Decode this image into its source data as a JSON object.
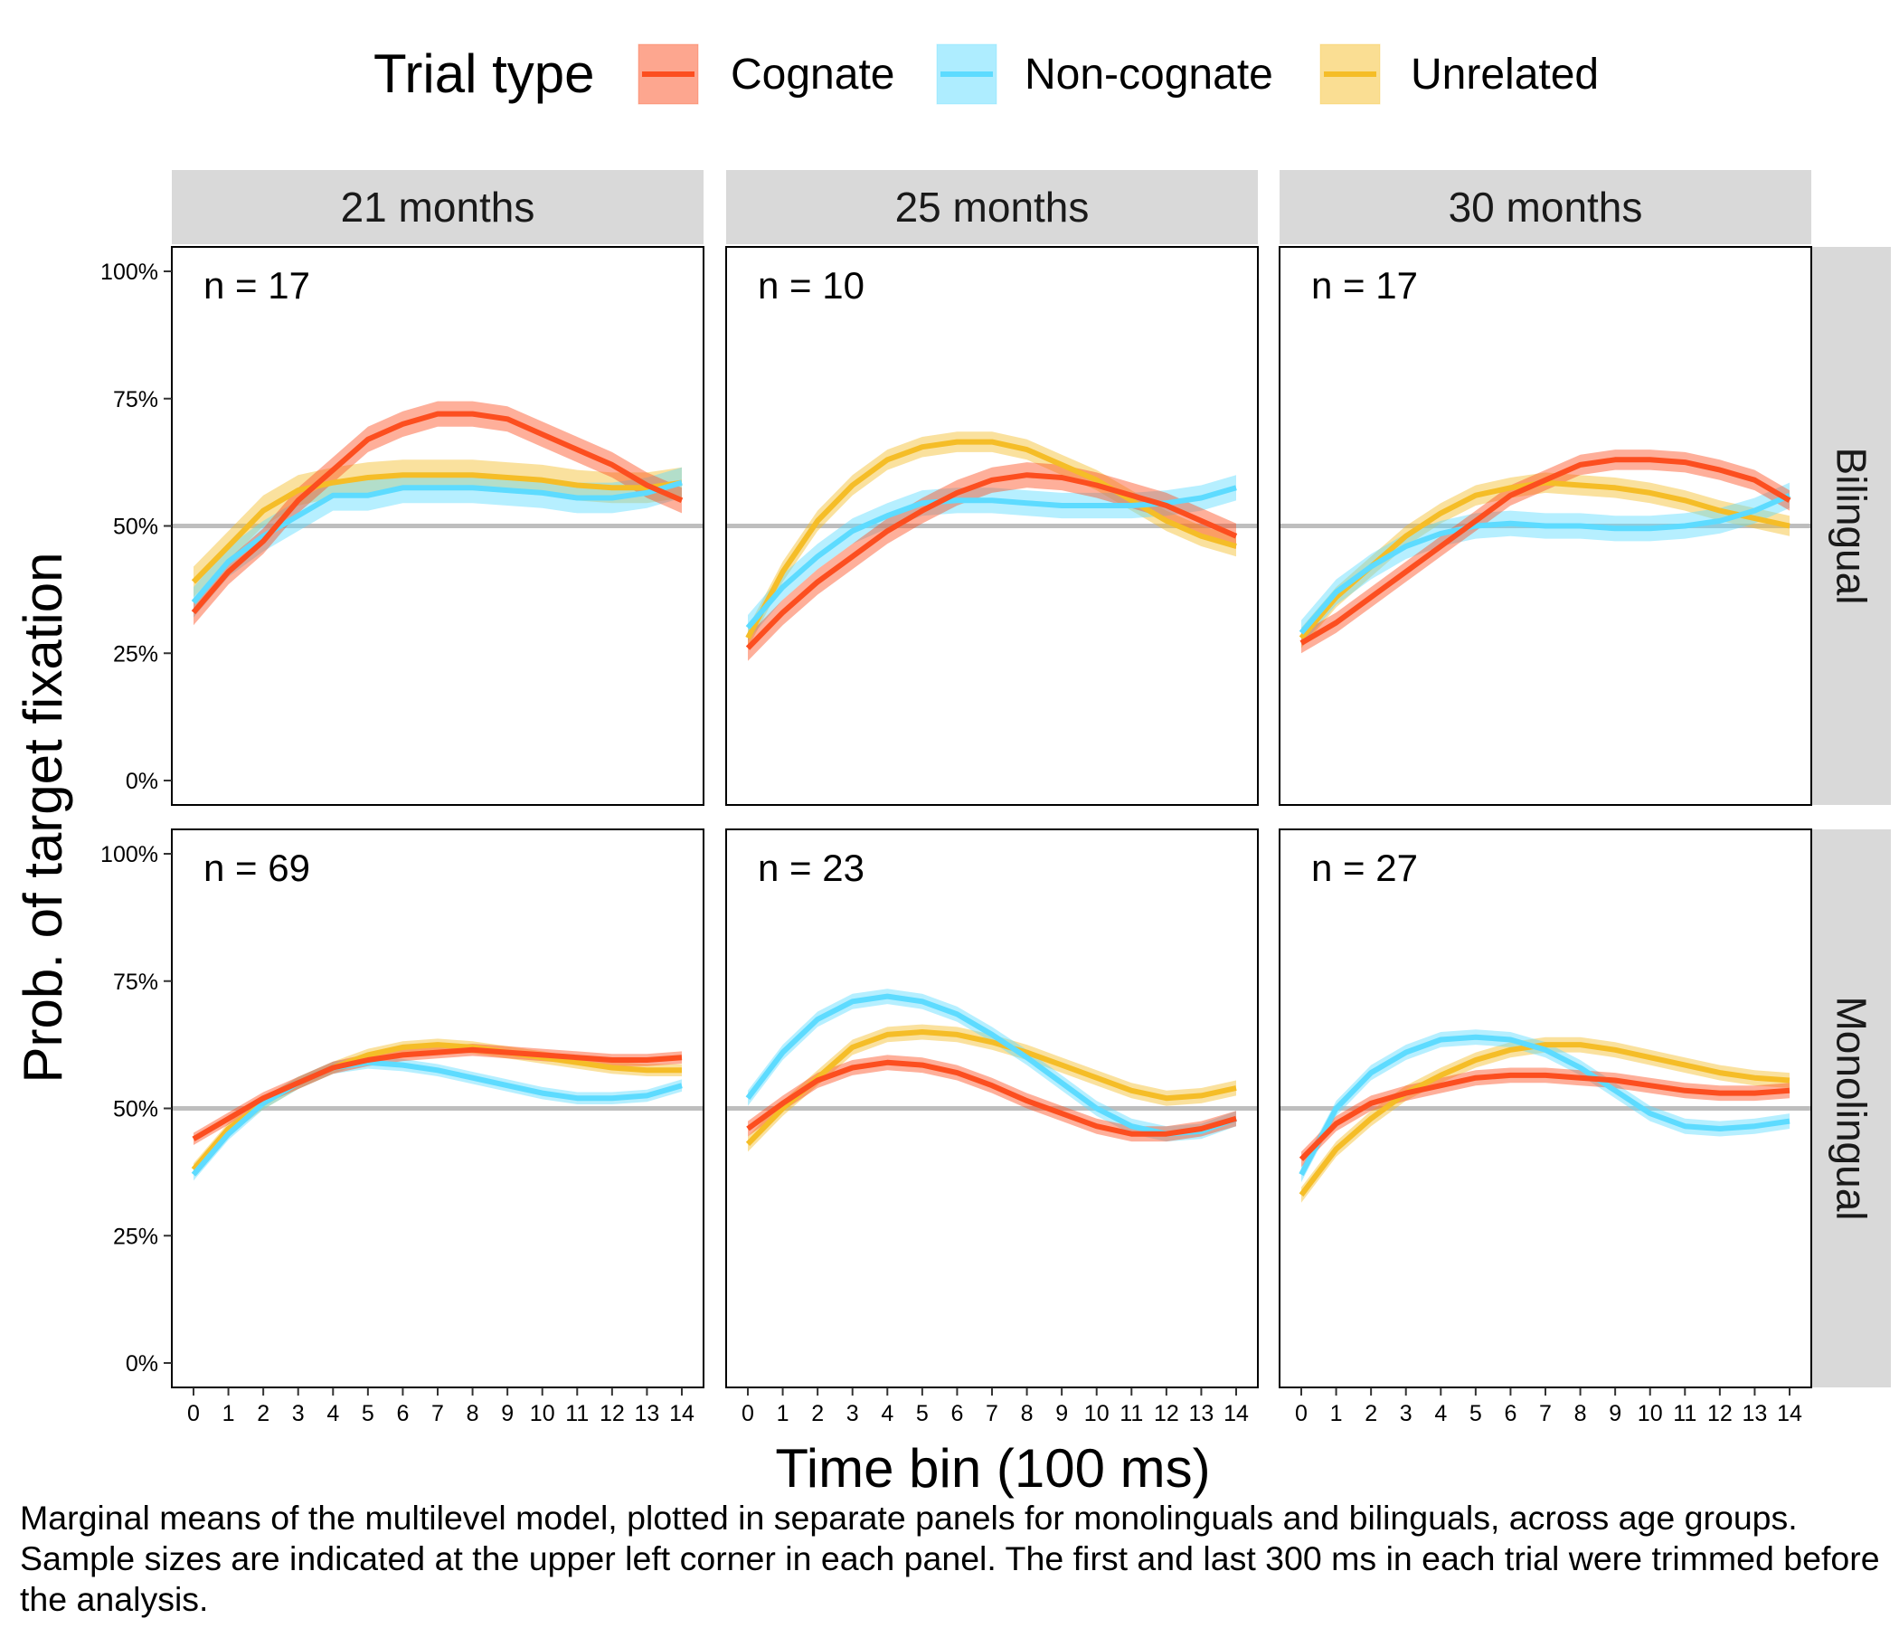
{
  "chart_data": {
    "type": "line",
    "legend": {
      "title": "Trial type",
      "placement": "top",
      "entries": [
        {
          "name": "Cognate",
          "color": "#fc4e1f"
        },
        {
          "name": "Non-cognate",
          "color": "#5ddbff"
        },
        {
          "name": "Unrelated",
          "color": "#f5bd27"
        }
      ]
    },
    "xlabel": "Time bin (100 ms)",
    "ylabel": "Prob. of target fixation",
    "x": [
      0,
      1,
      2,
      3,
      4,
      5,
      6,
      7,
      8,
      9,
      10,
      11,
      12,
      13,
      14
    ],
    "x_tick_labels": [
      "0",
      "1",
      "2",
      "3",
      "4",
      "5",
      "6",
      "7",
      "8",
      "9",
      "10",
      "11",
      "12",
      "13",
      "14"
    ],
    "y_tick_labels": [
      "0%",
      "25%",
      "50%",
      "75%",
      "100%"
    ],
    "y_ticks": [
      0,
      0.25,
      0.5,
      0.75,
      1.0
    ],
    "ylim": [
      0,
      1.0
    ],
    "reference_line": 0.5,
    "grid": false,
    "columns": [
      "21 months",
      "25 months",
      "30 months"
    ],
    "rows": [
      "Bilingual",
      "Monolingual"
    ],
    "panels": [
      {
        "row": "Bilingual",
        "column": "21 months",
        "n_label": "n = 17",
        "series": [
          {
            "name": "Cognate",
            "values": [
              0.33,
              0.41,
              0.47,
              0.55,
              0.61,
              0.67,
              0.7,
              0.72,
              0.72,
              0.71,
              0.68,
              0.65,
              0.62,
              0.58,
              0.55
            ],
            "band": 0.025
          },
          {
            "name": "Non-cognate",
            "values": [
              0.35,
              0.43,
              0.48,
              0.52,
              0.56,
              0.56,
              0.575,
              0.575,
              0.575,
              0.57,
              0.565,
              0.555,
              0.555,
              0.565,
              0.585
            ],
            "band": 0.03
          },
          {
            "name": "Unrelated",
            "values": [
              0.39,
              0.46,
              0.53,
              0.57,
              0.585,
              0.595,
              0.6,
              0.6,
              0.6,
              0.595,
              0.59,
              0.58,
              0.575,
              0.575,
              0.585
            ],
            "band": 0.03
          }
        ]
      },
      {
        "row": "Bilingual",
        "column": "25 months",
        "n_label": "n = 10",
        "series": [
          {
            "name": "Cognate",
            "values": [
              0.26,
              0.33,
              0.39,
              0.44,
              0.49,
              0.53,
              0.565,
              0.59,
              0.6,
              0.595,
              0.58,
              0.56,
              0.54,
              0.51,
              0.48
            ],
            "band": 0.025
          },
          {
            "name": "Non-cognate",
            "values": [
              0.3,
              0.38,
              0.44,
              0.49,
              0.52,
              0.545,
              0.55,
              0.55,
              0.545,
              0.54,
              0.54,
              0.54,
              0.545,
              0.555,
              0.575
            ],
            "band": 0.025
          },
          {
            "name": "Unrelated",
            "values": [
              0.28,
              0.41,
              0.51,
              0.58,
              0.63,
              0.655,
              0.665,
              0.665,
              0.65,
              0.62,
              0.59,
              0.55,
              0.51,
              0.48,
              0.46
            ],
            "band": 0.02
          }
        ]
      },
      {
        "row": "Bilingual",
        "column": "30 months",
        "n_label": "n = 17",
        "series": [
          {
            "name": "Cognate",
            "values": [
              0.27,
              0.31,
              0.36,
              0.41,
              0.46,
              0.51,
              0.56,
              0.59,
              0.62,
              0.63,
              0.63,
              0.625,
              0.61,
              0.59,
              0.55
            ],
            "band": 0.02
          },
          {
            "name": "Non-cognate",
            "values": [
              0.29,
              0.37,
              0.42,
              0.46,
              0.485,
              0.5,
              0.505,
              0.5,
              0.5,
              0.495,
              0.495,
              0.5,
              0.51,
              0.53,
              0.56
            ],
            "band": 0.025
          },
          {
            "name": "Unrelated",
            "values": [
              0.28,
              0.36,
              0.42,
              0.48,
              0.525,
              0.56,
              0.575,
              0.585,
              0.58,
              0.575,
              0.565,
              0.55,
              0.53,
              0.515,
              0.5
            ],
            "band": 0.02
          }
        ]
      },
      {
        "row": "Monolingual",
        "column": "21 months",
        "n_label": "n = 69",
        "series": [
          {
            "name": "Cognate",
            "values": [
              0.44,
              0.48,
              0.52,
              0.55,
              0.58,
              0.595,
              0.605,
              0.61,
              0.615,
              0.61,
              0.605,
              0.6,
              0.595,
              0.595,
              0.6
            ],
            "band": 0.012
          },
          {
            "name": "Non-cognate",
            "values": [
              0.37,
              0.45,
              0.51,
              0.55,
              0.58,
              0.59,
              0.585,
              0.575,
              0.56,
              0.545,
              0.53,
              0.52,
              0.52,
              0.525,
              0.545
            ],
            "band": 0.012
          },
          {
            "name": "Unrelated",
            "values": [
              0.38,
              0.46,
              0.51,
              0.55,
              0.58,
              0.605,
              0.62,
              0.625,
              0.62,
              0.61,
              0.6,
              0.59,
              0.58,
              0.575,
              0.575
            ],
            "band": 0.012
          }
        ]
      },
      {
        "row": "Monolingual",
        "column": "25 months",
        "n_label": "n = 23",
        "series": [
          {
            "name": "Cognate",
            "values": [
              0.46,
              0.51,
              0.555,
              0.58,
              0.59,
              0.585,
              0.57,
              0.545,
              0.515,
              0.49,
              0.465,
              0.45,
              0.45,
              0.46,
              0.48
            ],
            "band": 0.015
          },
          {
            "name": "Non-cognate",
            "values": [
              0.52,
              0.61,
              0.675,
              0.71,
              0.72,
              0.71,
              0.685,
              0.645,
              0.6,
              0.55,
              0.5,
              0.465,
              0.45,
              0.455,
              0.48
            ],
            "band": 0.015
          },
          {
            "name": "Unrelated",
            "values": [
              0.43,
              0.5,
              0.56,
              0.62,
              0.645,
              0.65,
              0.645,
              0.63,
              0.61,
              0.585,
              0.56,
              0.535,
              0.52,
              0.525,
              0.54
            ],
            "band": 0.015
          }
        ]
      },
      {
        "row": "Monolingual",
        "column": "30 months",
        "n_label": "n = 27",
        "series": [
          {
            "name": "Cognate",
            "values": [
              0.4,
              0.47,
              0.51,
              0.53,
              0.545,
              0.56,
              0.565,
              0.565,
              0.56,
              0.555,
              0.545,
              0.535,
              0.53,
              0.53,
              0.535
            ],
            "band": 0.015
          },
          {
            "name": "Non-cognate",
            "values": [
              0.37,
              0.5,
              0.57,
              0.61,
              0.635,
              0.64,
              0.635,
              0.615,
              0.58,
              0.535,
              0.49,
              0.465,
              0.46,
              0.465,
              0.475
            ],
            "band": 0.015
          },
          {
            "name": "Unrelated",
            "values": [
              0.33,
              0.42,
              0.48,
              0.53,
              0.565,
              0.595,
              0.615,
              0.625,
              0.625,
              0.615,
              0.6,
              0.585,
              0.57,
              0.56,
              0.555
            ],
            "band": 0.015
          }
        ]
      }
    ]
  },
  "caption": "Marginal means of the multilevel model, plotted in separate panels for monolinguals and bilinguals, across age groups. Sample sizes are indicated at the upper left corner in each panel. The first and last 300 ms in each trial were trimmed before the analysis.",
  "colors": {
    "Cognate": "#fc4e1f",
    "Non-cognate": "#5ddbff",
    "Unrelated": "#f5bd27",
    "reference_line": "#bebebe",
    "strip_background": "#d9d9d9"
  }
}
